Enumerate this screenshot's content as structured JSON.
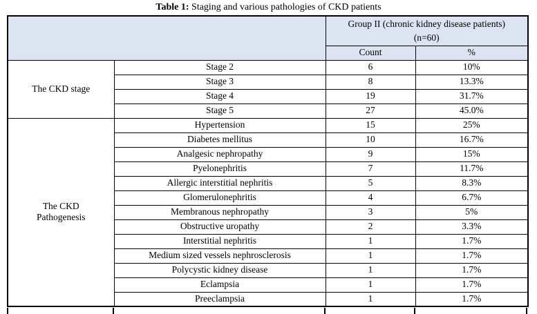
{
  "title": {
    "label": "Table 1:",
    "text": " Staging and various pathologies of CKD patients"
  },
  "table": {
    "group_header": {
      "line1": "Group II (chronic kidney disease patients)",
      "line2": "(n=60)"
    },
    "columns": {
      "count": "Count",
      "percent": "%"
    },
    "sections": [
      {
        "label": "The CKD stage",
        "label_lines": [
          "The CKD stage"
        ],
        "rows": [
          {
            "name": "Stage 2",
            "count": "6",
            "percent": "10%"
          },
          {
            "name": "Stage 3",
            "count": "8",
            "percent": "13.3%"
          },
          {
            "name": "Stage 4",
            "count": "19",
            "percent": "31.7%"
          },
          {
            "name": "Stage 5",
            "count": "27",
            "percent": "45.0%"
          }
        ]
      },
      {
        "label": "The CKD Pathogenesis",
        "label_lines": [
          "The CKD",
          "Pathogenesis"
        ],
        "rows": [
          {
            "name": "Hypertension",
            "count": "15",
            "percent": "25%"
          },
          {
            "name": "Diabetes mellitus",
            "count": "10",
            "percent": "16.7%"
          },
          {
            "name": "Analgesic nephropathy",
            "count": "9",
            "percent": "15%"
          },
          {
            "name": "Pyelonephritis",
            "count": "7",
            "percent": "11.7%"
          },
          {
            "name": "Allergic interstitial nephritis",
            "count": "5",
            "percent": "8.3%"
          },
          {
            "name": "Glomerulonephritis",
            "count": "4",
            "percent": "6.7%"
          },
          {
            "name": "Membranous nephropathy",
            "count": "3",
            "percent": "5%"
          },
          {
            "name": "Obstructive uropathy",
            "count": "2",
            "percent": "3.3%"
          },
          {
            "name": "Interstitial nephritis",
            "count": "1",
            "percent": "1.7%"
          },
          {
            "name": "Medium sized vessels nephrosclerosis",
            "count": "1",
            "percent": "1.7%"
          },
          {
            "name": "Polycystic kidney disease",
            "count": "1",
            "percent": "1.7%"
          },
          {
            "name": "Eclampsia",
            "count": "1",
            "percent": "1.7%"
          },
          {
            "name": "Preeclampsia",
            "count": "1",
            "percent": "1.7%"
          }
        ]
      }
    ],
    "colors": {
      "header_bg": "#dbe4f0",
      "border": "#000000"
    }
  }
}
